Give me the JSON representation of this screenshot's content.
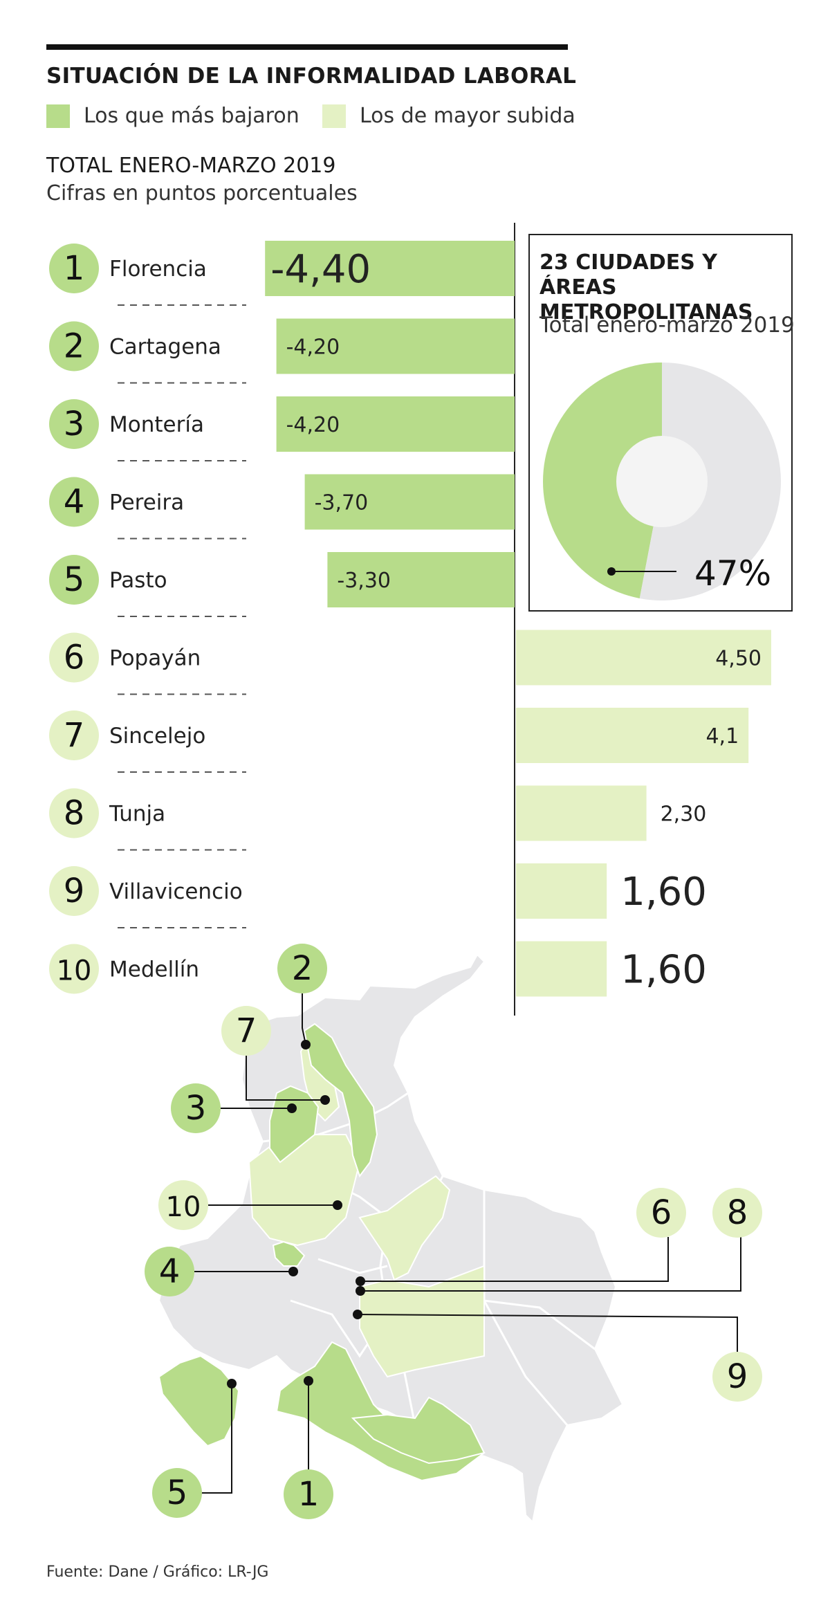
{
  "header": {
    "title": "SITUACIÓN DE LA INFORMALIDAD LABORAL",
    "subtitle": "TOTAL ENERO-MARZO 2019",
    "unit": "Cifras en puntos porcentuales"
  },
  "legend": [
    {
      "label": "Los que más bajaron",
      "color": "#b7dc8a"
    },
    {
      "label": "Los de mayor subida",
      "color": "#e4f1c4"
    }
  ],
  "chart_data": {
    "type": "bar",
    "orientation": "horizontal",
    "title": "TOTAL ENERO-MARZO 2019",
    "ylabel": "Cifras en puntos porcentuales",
    "xlim": [
      -4.5,
      4.5
    ],
    "rows": [
      {
        "rank": "1",
        "city": "Florencia",
        "value": -4.4,
        "label": "-4,40",
        "group": "down"
      },
      {
        "rank": "2",
        "city": "Cartagena",
        "value": -4.2,
        "label": "-4,20",
        "group": "down"
      },
      {
        "rank": "3",
        "city": "Montería",
        "value": -4.2,
        "label": "-4,20",
        "group": "down"
      },
      {
        "rank": "4",
        "city": "Pereira",
        "value": -3.7,
        "label": "-3,70",
        "group": "down"
      },
      {
        "rank": "5",
        "city": "Pasto",
        "value": -3.3,
        "label": "-3,30",
        "group": "down"
      },
      {
        "rank": "6",
        "city": "Popayán",
        "value": 4.5,
        "label": "4,50",
        "group": "up"
      },
      {
        "rank": "7",
        "city": "Sincelejo",
        "value": 4.1,
        "label": "4,1",
        "group": "up"
      },
      {
        "rank": "8",
        "city": "Tunja",
        "value": 2.3,
        "label": "2,30",
        "group": "up"
      },
      {
        "rank": "9",
        "city": "Villavicencio",
        "value": 1.6,
        "label": "1,60",
        "group": "up"
      },
      {
        "rank": "10",
        "city": "Medellín",
        "value": 1.6,
        "label": "1,60",
        "group": "up"
      }
    ]
  },
  "inset": {
    "title": "23 CIUDADES Y ÁREAS METROPOLITANAS",
    "subtitle": "Total enero-marzo 2019",
    "value_label": "47%",
    "chart_data": {
      "type": "pie",
      "values": [
        47,
        53
      ],
      "colors": [
        "#b7dc8a",
        "#e6e6e8"
      ]
    }
  },
  "map": {
    "markers": [
      {
        "rank": "2",
        "group": "down"
      },
      {
        "rank": "7",
        "group": "up"
      },
      {
        "rank": "3",
        "group": "down"
      },
      {
        "rank": "10",
        "group": "up"
      },
      {
        "rank": "4",
        "group": "down"
      },
      {
        "rank": "6",
        "group": "up"
      },
      {
        "rank": "8",
        "group": "up"
      },
      {
        "rank": "9",
        "group": "up"
      },
      {
        "rank": "5",
        "group": "down"
      },
      {
        "rank": "1",
        "group": "down"
      }
    ]
  },
  "colors": {
    "down": "#b7dc8a",
    "up": "#e4f1c4",
    "map_base": "#e6e6e8",
    "map_border": "#ffffff"
  },
  "footer": {
    "source": "Fuente: Dane / Gráfico: LR-JG"
  }
}
